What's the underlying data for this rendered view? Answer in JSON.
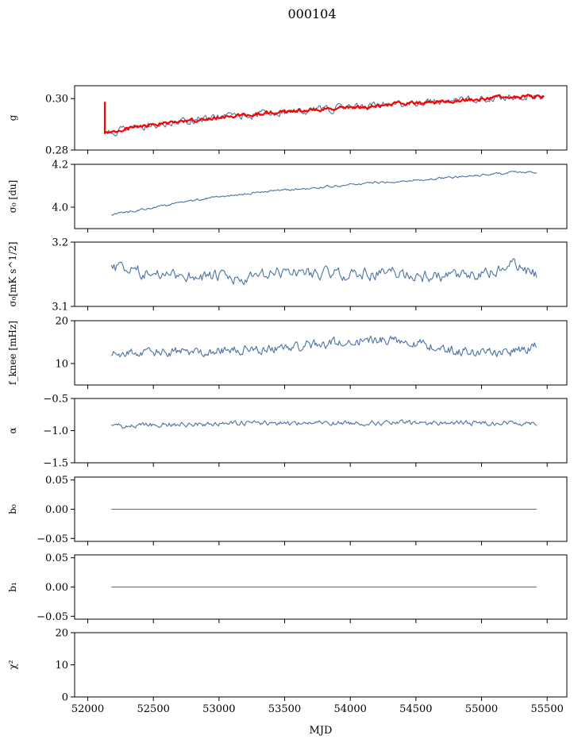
{
  "figure": {
    "title": "000104",
    "xlabel": "MJD"
  },
  "colors": {
    "series": "#4c72a4",
    "model": "#ff0000",
    "axis": "#000000",
    "background": "#ffffff"
  },
  "chart_data": [
    {
      "type": "line",
      "ylabel": "g",
      "ylim": [
        0.28,
        0.305
      ],
      "xlim": [
        51900,
        55650
      ],
      "yticks": [
        0.28,
        0.3
      ],
      "ytick_labels": [
        "0.28",
        "0.30"
      ],
      "series": [
        {
          "role": "data",
          "x_range": [
            52130,
            55480
          ],
          "step": 10,
          "noise": 0.0012,
          "points": [
            [
              52130,
              0.2865
            ],
            [
              52300,
              0.288
            ],
            [
              52500,
              0.2895
            ],
            [
              52800,
              0.2915
            ],
            [
              53100,
              0.293
            ],
            [
              53400,
              0.2945
            ],
            [
              53700,
              0.2955
            ],
            [
              54000,
              0.2965
            ],
            [
              54300,
              0.2975
            ],
            [
              54600,
              0.2985
            ],
            [
              54900,
              0.2995
            ],
            [
              55200,
              0.3005
            ],
            [
              55400,
              0.3008
            ],
            [
              55480,
              0.3005
            ]
          ]
        },
        {
          "role": "model",
          "x_range": [
            52130,
            55480
          ],
          "step": 8,
          "noise": 0.0006,
          "points": [
            [
              52130,
              0.2865
            ],
            [
              52300,
              0.2882
            ],
            [
              52500,
              0.2898
            ],
            [
              52800,
              0.2918
            ],
            [
              53100,
              0.2932
            ],
            [
              53400,
              0.2946
            ],
            [
              53700,
              0.2956
            ],
            [
              54000,
              0.2966
            ],
            [
              54300,
              0.2976
            ],
            [
              54600,
              0.2986
            ],
            [
              54900,
              0.2996
            ],
            [
              55200,
              0.3004
            ],
            [
              55400,
              0.3008
            ],
            [
              55480,
              0.3004
            ]
          ]
        }
      ]
    },
    {
      "type": "line",
      "ylabel": "σ₀ [du]",
      "ylim": [
        3.9,
        4.2
      ],
      "xlim": [
        51900,
        55650
      ],
      "yticks": [
        4.0,
        4.2
      ],
      "ytick_labels": [
        "4.0",
        "4.2"
      ],
      "series": [
        {
          "role": "data",
          "x_range": [
            52180,
            55420
          ],
          "step": 8,
          "noise": 0.004,
          "points": [
            [
              52180,
              3.965
            ],
            [
              52400,
              3.985
            ],
            [
              52700,
              4.02
            ],
            [
              53000,
              4.05
            ],
            [
              53400,
              4.075
            ],
            [
              53800,
              4.095
            ],
            [
              54200,
              4.115
            ],
            [
              54600,
              4.13
            ],
            [
              55000,
              4.15
            ],
            [
              55300,
              4.165
            ],
            [
              55420,
              4.16
            ]
          ]
        }
      ]
    },
    {
      "type": "line",
      "ylabel": "σ₀[mK s^1/2]",
      "ylim": [
        3.1,
        3.2
      ],
      "xlim": [
        51900,
        55650
      ],
      "yticks": [
        3.1,
        3.2
      ],
      "ytick_labels": [
        "3.1",
        "3.2"
      ],
      "series": [
        {
          "role": "data",
          "x_range": [
            52180,
            55420
          ],
          "step": 10,
          "noise": 0.008,
          "points": [
            [
              52180,
              3.16
            ],
            [
              52500,
              3.15
            ],
            [
              52900,
              3.148
            ],
            [
              53200,
              3.14
            ],
            [
              53500,
              3.155
            ],
            [
              53900,
              3.15
            ],
            [
              54300,
              3.152
            ],
            [
              54700,
              3.145
            ],
            [
              55000,
              3.148
            ],
            [
              55250,
              3.165
            ],
            [
              55420,
              3.148
            ]
          ]
        }
      ]
    },
    {
      "type": "line",
      "ylabel": "f_knee [mHz]",
      "ylim": [
        5,
        20
      ],
      "xlim": [
        51900,
        55650
      ],
      "yticks": [
        10,
        20
      ],
      "ytick_labels": [
        "10",
        "20"
      ],
      "series": [
        {
          "role": "data",
          "x_range": [
            52180,
            55420
          ],
          "step": 8,
          "noise": 0.9,
          "points": [
            [
              52180,
              12.5
            ],
            [
              52600,
              12.5
            ],
            [
              53000,
              13.0
            ],
            [
              53400,
              13.5
            ],
            [
              53800,
              14.5
            ],
            [
              54100,
              15.5
            ],
            [
              54400,
              15.5
            ],
            [
              54700,
              13.5
            ],
            [
              55000,
              12.5
            ],
            [
              55300,
              13.0
            ],
            [
              55420,
              14.0
            ]
          ]
        }
      ]
    },
    {
      "type": "line",
      "ylabel": "α",
      "ylim": [
        -1.5,
        -0.5
      ],
      "xlim": [
        51900,
        55650
      ],
      "yticks": [
        -1.5,
        -1.0,
        -0.5
      ],
      "ytick_labels": [
        "−1.5",
        "−1.0",
        "−0.5"
      ],
      "series": [
        {
          "role": "data",
          "x_range": [
            52180,
            55420
          ],
          "step": 8,
          "noise": 0.03,
          "points": [
            [
              52180,
              -0.93
            ],
            [
              52500,
              -0.91
            ],
            [
              53000,
              -0.89
            ],
            [
              53500,
              -0.88
            ],
            [
              54000,
              -0.88
            ],
            [
              54500,
              -0.88
            ],
            [
              55000,
              -0.88
            ],
            [
              55420,
              -0.88
            ]
          ]
        }
      ]
    },
    {
      "type": "line",
      "ylabel": "b₀",
      "ylim": [
        -0.055,
        0.055
      ],
      "xlim": [
        51900,
        55650
      ],
      "yticks": [
        -0.05,
        0.0,
        0.05
      ],
      "ytick_labels": [
        "−0.05",
        "0.00",
        "0.05"
      ],
      "series": [
        {
          "role": "data",
          "x_range": [
            52180,
            55420
          ],
          "step": 3240,
          "noise": 0,
          "points": [
            [
              52180,
              0.0
            ],
            [
              55420,
              0.0
            ]
          ]
        }
      ]
    },
    {
      "type": "line",
      "ylabel": "b₁",
      "ylim": [
        -0.055,
        0.055
      ],
      "xlim": [
        51900,
        55650
      ],
      "yticks": [
        -0.05,
        0.0,
        0.05
      ],
      "ytick_labels": [
        "−0.05",
        "0.00",
        "0.05"
      ],
      "series": [
        {
          "role": "data",
          "x_range": [
            52180,
            55420
          ],
          "step": 3240,
          "noise": 0,
          "points": [
            [
              52180,
              0.0
            ],
            [
              55420,
              0.0
            ]
          ]
        }
      ]
    },
    {
      "type": "line",
      "ylabel": "χ²",
      "ylim": [
        0,
        20
      ],
      "xlim": [
        51900,
        55650
      ],
      "yticks": [
        0,
        10,
        20
      ],
      "ytick_labels": [
        "0",
        "10",
        "20"
      ],
      "xticks": [
        52000,
        52500,
        53000,
        53500,
        54000,
        54500,
        55000,
        55500
      ],
      "xtick_labels": [
        "52000",
        "52500",
        "53000",
        "53500",
        "54000",
        "54500",
        "55000",
        "55500"
      ],
      "series": [
        {
          "role": "data",
          "x_range": [
            52180,
            55420
          ],
          "step": 3240,
          "noise": 0,
          "points": [
            [
              52180,
              0.0
            ],
            [
              55420,
              0.0
            ]
          ]
        }
      ]
    }
  ]
}
